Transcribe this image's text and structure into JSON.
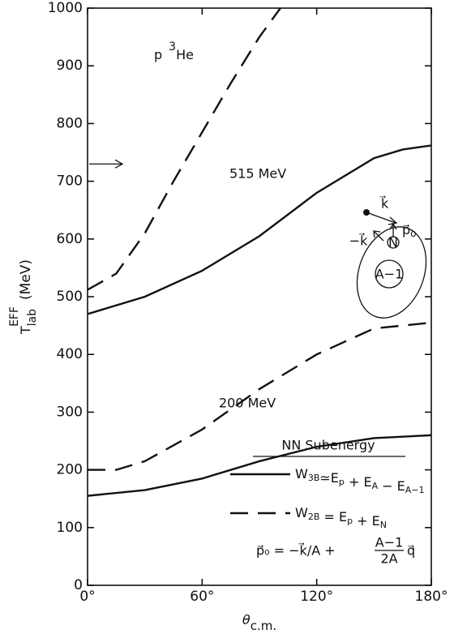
{
  "chart_data": {
    "type": "line",
    "xlabel": {
      "base": "θ",
      "sub": "c.m."
    },
    "ylabel": {
      "base": "T",
      "sub": "lab",
      "sup": "EFF",
      "unit": "(MeV)"
    },
    "xlim": [
      0,
      180
    ],
    "ylim": [
      0,
      1000
    ],
    "xticks": [
      {
        "value": 0,
        "label": "0°"
      },
      {
        "value": 60,
        "label": "60°"
      },
      {
        "value": 120,
        "label": "120°"
      },
      {
        "value": 180,
        "label": "180°"
      }
    ],
    "yticks": [
      0,
      100,
      200,
      300,
      400,
      500,
      600,
      700,
      800,
      900,
      1000
    ],
    "color": "#111111",
    "series": [
      {
        "dash": "solid",
        "x": [
          0,
          30,
          60,
          90,
          120,
          150,
          165,
          180
        ],
        "values": [
          470,
          500,
          545,
          605,
          680,
          740,
          755,
          762
        ]
      },
      {
        "dash": "dashed",
        "x": [
          0,
          15,
          30,
          45,
          60,
          75,
          90,
          101
        ],
        "values": [
          512,
          540,
          610,
          700,
          785,
          870,
          950,
          1000
        ]
      },
      {
        "dash": "solid",
        "x": [
          0,
          30,
          60,
          90,
          120,
          150,
          180
        ],
        "values": [
          155,
          165,
          185,
          215,
          240,
          255,
          260
        ]
      },
      {
        "dash": "dashed",
        "x": [
          0,
          15,
          30,
          60,
          90,
          120,
          150,
          180
        ],
        "values": [
          200,
          200,
          215,
          270,
          340,
          400,
          445,
          455
        ]
      }
    ],
    "marker_y": 730,
    "reaction": {
      "projectile": "p",
      "mass": "3",
      "target": "He"
    },
    "annotations": [
      "515 MeV",
      "200 MeV"
    ],
    "legend": {
      "title": "NN Subenergy",
      "entries": [
        {
          "dash": "solid",
          "label": [
            [
              "W",
              "3B"
            ],
            [
              "≃E",
              "p"
            ],
            [
              " + E",
              "A"
            ],
            [
              " − E",
              "A−1"
            ]
          ]
        },
        {
          "dash": "dashed",
          "label": [
            [
              "W",
              "2B"
            ],
            [
              " = E",
              "p"
            ],
            [
              " + E",
              "N"
            ]
          ]
        }
      ],
      "formula": {
        "lhs": "p⃗₀ = −k⃗/A +",
        "num": "A−1",
        "den": "2A",
        "rhs": "q⃗"
      }
    },
    "inset": {
      "k": "k⃗",
      "minus_k": "−k⃗",
      "p0": "p⃗",
      "p0_sub": "o",
      "nucleon": "N",
      "core": "A−1"
    }
  }
}
